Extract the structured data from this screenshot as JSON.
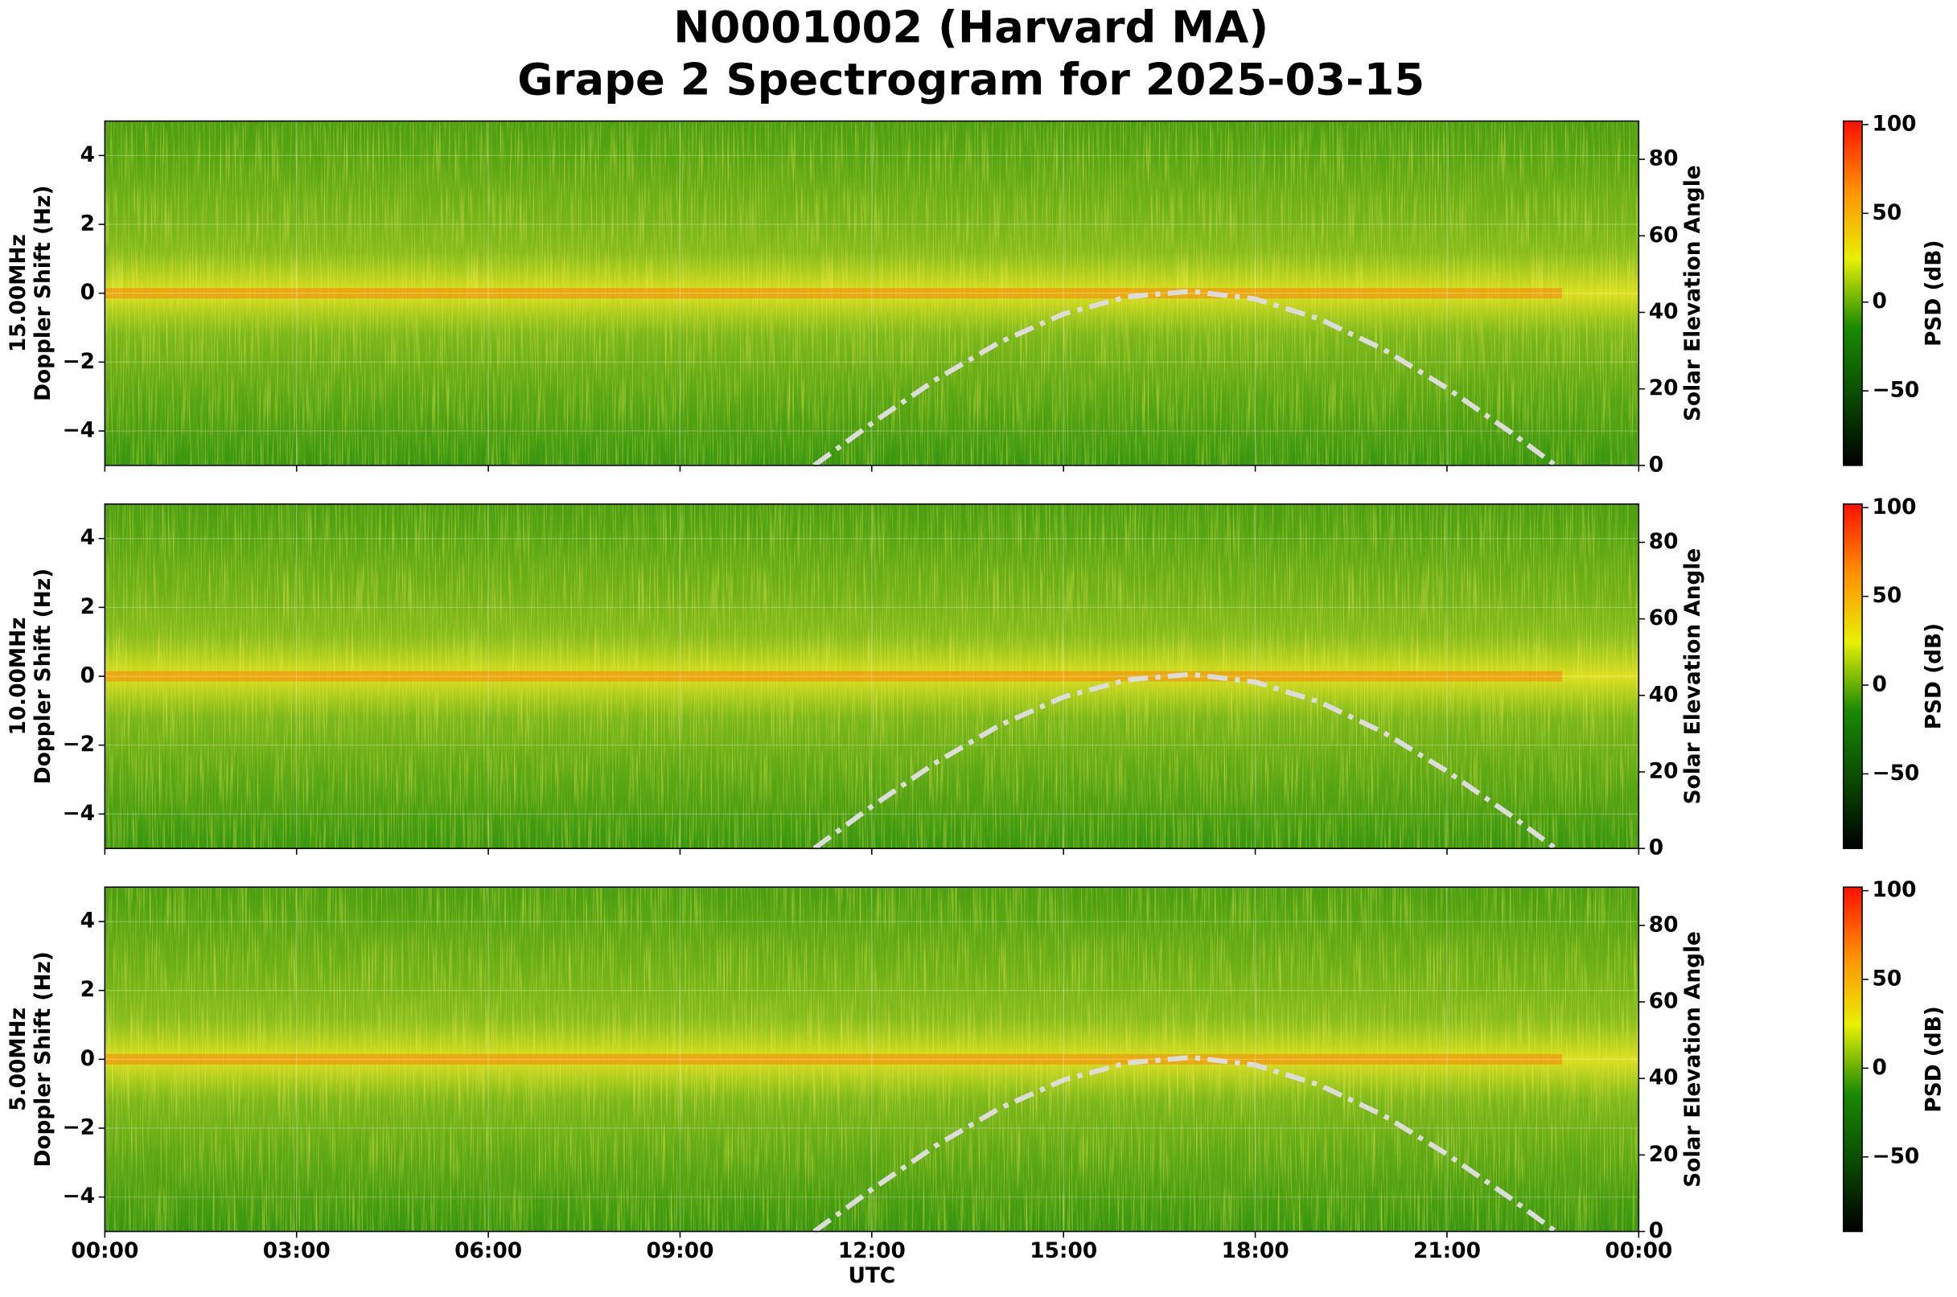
{
  "title": [
    "N0001002 (Harvard MA)",
    "Grape 2 Spectrogram for 2025-03-15"
  ],
  "xlabel": "UTC",
  "xlim": [
    0,
    24
  ],
  "xticks": [
    {
      "value": 0,
      "label": "00:00"
    },
    {
      "value": 3,
      "label": "03:00"
    },
    {
      "value": 6,
      "label": "06:00"
    },
    {
      "value": 9,
      "label": "09:00"
    },
    {
      "value": 12,
      "label": "12:00"
    },
    {
      "value": 15,
      "label": "15:00"
    },
    {
      "value": 18,
      "label": "18:00"
    },
    {
      "value": 21,
      "label": "21:00"
    },
    {
      "value": 24,
      "label": "00:00"
    }
  ],
  "chart_data": [
    {
      "type": "spectrogram",
      "ylabel": [
        "15.00MHz",
        "Doppler Shift (Hz)"
      ],
      "y2label": "Solar Elevation Angle",
      "ylim": [
        -5,
        5
      ],
      "yticks": [
        {
          "value": -4,
          "label": "−4"
        },
        {
          "value": -2,
          "label": "−2"
        },
        0,
        2,
        4
      ],
      "y2lim": [
        0,
        90
      ],
      "y2ticks": [
        0,
        20,
        40,
        60,
        80
      ],
      "grid": true,
      "solar_elevation": {
        "axis": "y2",
        "color": "#dcdcdc",
        "x": [
          11.1,
          12,
          13,
          14,
          15,
          16,
          17,
          18,
          19,
          20,
          21,
          22,
          22.7
        ],
        "values": [
          0,
          11.0,
          22.4,
          32.2,
          39.6,
          44.1,
          45.5,
          43.5,
          38.3,
          30.4,
          20.2,
          8.6,
          0
        ]
      },
      "colorbar": {
        "label": "PSD (dB)",
        "lim": [
          -92,
          102
        ],
        "ticks": [
          {
            "value": -50,
            "label": "−50"
          },
          0,
          50,
          100
        ],
        "colors": [
          "#000000",
          "#0a4a00",
          "#1a8a00",
          "#e8f000",
          "#ff9000",
          "#ff1000"
        ]
      }
    },
    {
      "type": "spectrogram",
      "ylabel": [
        "10.00MHz",
        "Doppler Shift (Hz)"
      ],
      "y2label": "Solar Elevation Angle",
      "ylim": [
        -5,
        5
      ],
      "yticks": [
        {
          "value": -4,
          "label": "−4"
        },
        {
          "value": -2,
          "label": "−2"
        },
        0,
        2,
        4
      ],
      "y2lim": [
        0,
        90
      ],
      "y2ticks": [
        0,
        20,
        40,
        60,
        80
      ],
      "grid": true,
      "solar_elevation": {
        "axis": "y2",
        "color": "#dcdcdc",
        "x": [
          11.1,
          12,
          13,
          14,
          15,
          16,
          17,
          18,
          19,
          20,
          21,
          22,
          22.7
        ],
        "values": [
          0,
          11.0,
          22.4,
          32.2,
          39.6,
          44.1,
          45.5,
          43.5,
          38.3,
          30.4,
          20.2,
          8.6,
          0
        ]
      },
      "colorbar": {
        "label": "PSD (dB)",
        "lim": [
          -92,
          102
        ],
        "ticks": [
          {
            "value": -50,
            "label": "−50"
          },
          0,
          50,
          100
        ],
        "colors": [
          "#000000",
          "#0a4a00",
          "#1a8a00",
          "#e8f000",
          "#ff9000",
          "#ff1000"
        ]
      }
    },
    {
      "type": "spectrogram",
      "ylabel": [
        "5.00MHz",
        "Doppler Shift (Hz)"
      ],
      "y2label": "Solar Elevation Angle",
      "ylim": [
        -5,
        5
      ],
      "yticks": [
        {
          "value": -4,
          "label": "−4"
        },
        {
          "value": -2,
          "label": "−2"
        },
        0,
        2,
        4
      ],
      "y2lim": [
        0,
        90
      ],
      "y2ticks": [
        0,
        20,
        40,
        60,
        80
      ],
      "grid": true,
      "solar_elevation": {
        "axis": "y2",
        "color": "#dcdcdc",
        "x": [
          11.1,
          12,
          13,
          14,
          15,
          16,
          17,
          18,
          19,
          20,
          21,
          22,
          22.7
        ],
        "values": [
          0,
          11.0,
          22.4,
          32.2,
          39.6,
          44.1,
          45.5,
          43.5,
          38.3,
          30.4,
          20.2,
          8.6,
          0
        ]
      },
      "colorbar": {
        "label": "PSD (dB)",
        "lim": [
          -92,
          102
        ],
        "ticks": [
          {
            "value": -50,
            "label": "−50"
          },
          0,
          50,
          100
        ],
        "colors": [
          "#000000",
          "#0a4a00",
          "#1a8a00",
          "#e8f000",
          "#ff9000",
          "#ff1000"
        ]
      }
    }
  ]
}
